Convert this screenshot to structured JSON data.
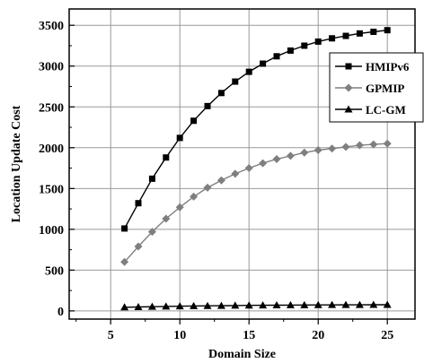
{
  "chart_data": {
    "type": "line",
    "title": "",
    "xlabel": "Domain Size",
    "ylabel": "Location Update Cost",
    "xlim": [
      2,
      27
    ],
    "ylim": [
      -100,
      3700
    ],
    "xticks": [
      5,
      10,
      15,
      20,
      25
    ],
    "yticks": [
      0,
      500,
      1000,
      1500,
      2000,
      2500,
      3000,
      3500
    ],
    "grid": true,
    "legend_position": "right",
    "x": [
      6,
      7,
      8,
      9,
      10,
      11,
      12,
      13,
      14,
      15,
      16,
      17,
      18,
      19,
      20,
      21,
      22,
      23,
      24,
      25
    ],
    "series": [
      {
        "name": "HMIPv6",
        "marker": "square",
        "color": "#000000",
        "values": [
          1010,
          1320,
          1620,
          1880,
          2120,
          2330,
          2510,
          2670,
          2810,
          2930,
          3030,
          3120,
          3190,
          3250,
          3300,
          3340,
          3370,
          3400,
          3420,
          3440
        ]
      },
      {
        "name": "GPMIP",
        "marker": "diamond",
        "color": "#7f7f7f",
        "values": [
          600,
          790,
          970,
          1130,
          1270,
          1400,
          1510,
          1600,
          1680,
          1750,
          1810,
          1860,
          1900,
          1940,
          1970,
          1990,
          2010,
          2030,
          2040,
          2050
        ]
      },
      {
        "name": "LC-GM",
        "marker": "triangle",
        "color": "#000000",
        "values": [
          45,
          48,
          52,
          55,
          58,
          60,
          62,
          64,
          66,
          68,
          69,
          70,
          71,
          72,
          73,
          74,
          75,
          75,
          76,
          76
        ]
      }
    ]
  }
}
